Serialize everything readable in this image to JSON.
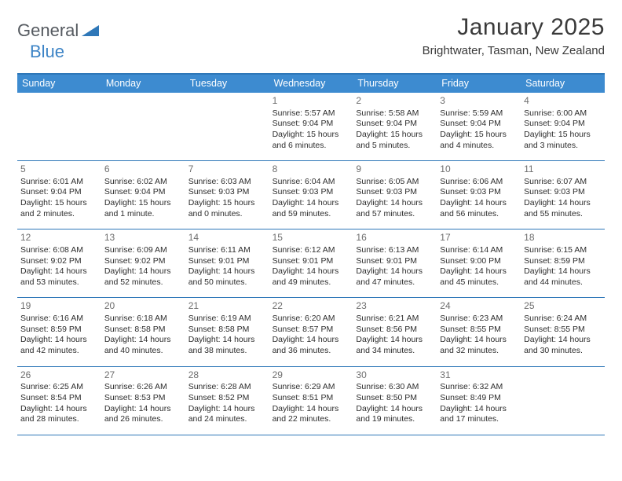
{
  "logo": {
    "text1": "General",
    "text2": "Blue",
    "triangle_color": "#2e77b8"
  },
  "title": "January 2025",
  "location": "Brightwater, Tasman, New Zealand",
  "colors": {
    "header_bg": "#3d8bd0",
    "header_text": "#ffffff",
    "rule": "#2e77b8",
    "daynum": "#6e6e6e",
    "body_text": "#2d2d2d",
    "background": "#ffffff"
  },
  "typography": {
    "title_fontsize": 30,
    "location_fontsize": 15,
    "header_fontsize": 12.5,
    "cell_fontsize": 10.5
  },
  "day_headers": [
    "Sunday",
    "Monday",
    "Tuesday",
    "Wednesday",
    "Thursday",
    "Friday",
    "Saturday"
  ],
  "weeks": [
    [
      {
        "day": "",
        "sunrise": "",
        "sunset": "",
        "daylight": ""
      },
      {
        "day": "",
        "sunrise": "",
        "sunset": "",
        "daylight": ""
      },
      {
        "day": "",
        "sunrise": "",
        "sunset": "",
        "daylight": ""
      },
      {
        "day": "1",
        "sunrise": "Sunrise: 5:57 AM",
        "sunset": "Sunset: 9:04 PM",
        "daylight": "Daylight: 15 hours and 6 minutes."
      },
      {
        "day": "2",
        "sunrise": "Sunrise: 5:58 AM",
        "sunset": "Sunset: 9:04 PM",
        "daylight": "Daylight: 15 hours and 5 minutes."
      },
      {
        "day": "3",
        "sunrise": "Sunrise: 5:59 AM",
        "sunset": "Sunset: 9:04 PM",
        "daylight": "Daylight: 15 hours and 4 minutes."
      },
      {
        "day": "4",
        "sunrise": "Sunrise: 6:00 AM",
        "sunset": "Sunset: 9:04 PM",
        "daylight": "Daylight: 15 hours and 3 minutes."
      }
    ],
    [
      {
        "day": "5",
        "sunrise": "Sunrise: 6:01 AM",
        "sunset": "Sunset: 9:04 PM",
        "daylight": "Daylight: 15 hours and 2 minutes."
      },
      {
        "day": "6",
        "sunrise": "Sunrise: 6:02 AM",
        "sunset": "Sunset: 9:04 PM",
        "daylight": "Daylight: 15 hours and 1 minute."
      },
      {
        "day": "7",
        "sunrise": "Sunrise: 6:03 AM",
        "sunset": "Sunset: 9:03 PM",
        "daylight": "Daylight: 15 hours and 0 minutes."
      },
      {
        "day": "8",
        "sunrise": "Sunrise: 6:04 AM",
        "sunset": "Sunset: 9:03 PM",
        "daylight": "Daylight: 14 hours and 59 minutes."
      },
      {
        "day": "9",
        "sunrise": "Sunrise: 6:05 AM",
        "sunset": "Sunset: 9:03 PM",
        "daylight": "Daylight: 14 hours and 57 minutes."
      },
      {
        "day": "10",
        "sunrise": "Sunrise: 6:06 AM",
        "sunset": "Sunset: 9:03 PM",
        "daylight": "Daylight: 14 hours and 56 minutes."
      },
      {
        "day": "11",
        "sunrise": "Sunrise: 6:07 AM",
        "sunset": "Sunset: 9:03 PM",
        "daylight": "Daylight: 14 hours and 55 minutes."
      }
    ],
    [
      {
        "day": "12",
        "sunrise": "Sunrise: 6:08 AM",
        "sunset": "Sunset: 9:02 PM",
        "daylight": "Daylight: 14 hours and 53 minutes."
      },
      {
        "day": "13",
        "sunrise": "Sunrise: 6:09 AM",
        "sunset": "Sunset: 9:02 PM",
        "daylight": "Daylight: 14 hours and 52 minutes."
      },
      {
        "day": "14",
        "sunrise": "Sunrise: 6:11 AM",
        "sunset": "Sunset: 9:01 PM",
        "daylight": "Daylight: 14 hours and 50 minutes."
      },
      {
        "day": "15",
        "sunrise": "Sunrise: 6:12 AM",
        "sunset": "Sunset: 9:01 PM",
        "daylight": "Daylight: 14 hours and 49 minutes."
      },
      {
        "day": "16",
        "sunrise": "Sunrise: 6:13 AM",
        "sunset": "Sunset: 9:01 PM",
        "daylight": "Daylight: 14 hours and 47 minutes."
      },
      {
        "day": "17",
        "sunrise": "Sunrise: 6:14 AM",
        "sunset": "Sunset: 9:00 PM",
        "daylight": "Daylight: 14 hours and 45 minutes."
      },
      {
        "day": "18",
        "sunrise": "Sunrise: 6:15 AM",
        "sunset": "Sunset: 8:59 PM",
        "daylight": "Daylight: 14 hours and 44 minutes."
      }
    ],
    [
      {
        "day": "19",
        "sunrise": "Sunrise: 6:16 AM",
        "sunset": "Sunset: 8:59 PM",
        "daylight": "Daylight: 14 hours and 42 minutes."
      },
      {
        "day": "20",
        "sunrise": "Sunrise: 6:18 AM",
        "sunset": "Sunset: 8:58 PM",
        "daylight": "Daylight: 14 hours and 40 minutes."
      },
      {
        "day": "21",
        "sunrise": "Sunrise: 6:19 AM",
        "sunset": "Sunset: 8:58 PM",
        "daylight": "Daylight: 14 hours and 38 minutes."
      },
      {
        "day": "22",
        "sunrise": "Sunrise: 6:20 AM",
        "sunset": "Sunset: 8:57 PM",
        "daylight": "Daylight: 14 hours and 36 minutes."
      },
      {
        "day": "23",
        "sunrise": "Sunrise: 6:21 AM",
        "sunset": "Sunset: 8:56 PM",
        "daylight": "Daylight: 14 hours and 34 minutes."
      },
      {
        "day": "24",
        "sunrise": "Sunrise: 6:23 AM",
        "sunset": "Sunset: 8:55 PM",
        "daylight": "Daylight: 14 hours and 32 minutes."
      },
      {
        "day": "25",
        "sunrise": "Sunrise: 6:24 AM",
        "sunset": "Sunset: 8:55 PM",
        "daylight": "Daylight: 14 hours and 30 minutes."
      }
    ],
    [
      {
        "day": "26",
        "sunrise": "Sunrise: 6:25 AM",
        "sunset": "Sunset: 8:54 PM",
        "daylight": "Daylight: 14 hours and 28 minutes."
      },
      {
        "day": "27",
        "sunrise": "Sunrise: 6:26 AM",
        "sunset": "Sunset: 8:53 PM",
        "daylight": "Daylight: 14 hours and 26 minutes."
      },
      {
        "day": "28",
        "sunrise": "Sunrise: 6:28 AM",
        "sunset": "Sunset: 8:52 PM",
        "daylight": "Daylight: 14 hours and 24 minutes."
      },
      {
        "day": "29",
        "sunrise": "Sunrise: 6:29 AM",
        "sunset": "Sunset: 8:51 PM",
        "daylight": "Daylight: 14 hours and 22 minutes."
      },
      {
        "day": "30",
        "sunrise": "Sunrise: 6:30 AM",
        "sunset": "Sunset: 8:50 PM",
        "daylight": "Daylight: 14 hours and 19 minutes."
      },
      {
        "day": "31",
        "sunrise": "Sunrise: 6:32 AM",
        "sunset": "Sunset: 8:49 PM",
        "daylight": "Daylight: 14 hours and 17 minutes."
      },
      {
        "day": "",
        "sunrise": "",
        "sunset": "",
        "daylight": ""
      }
    ]
  ]
}
